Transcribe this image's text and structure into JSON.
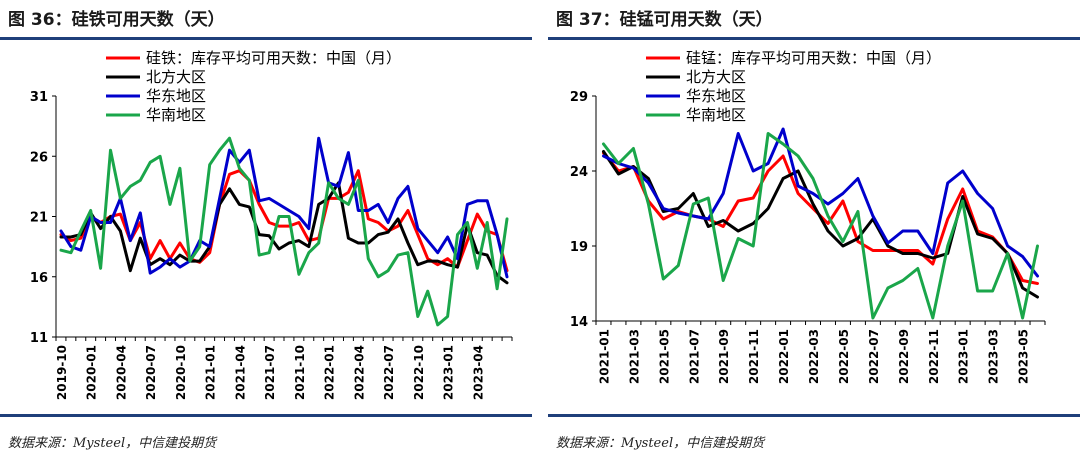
{
  "panels": [
    {
      "title": "图 36：硅铁可用天数（天）",
      "source": "数据来源：Mysteel，中信建投期货",
      "chart_data": {
        "type": "line",
        "ylim": [
          11,
          31
        ],
        "yticks": [
          11,
          16,
          21,
          26,
          31
        ],
        "x_labels": [
          "2019-10",
          "2020-01",
          "2020-04",
          "2020-07",
          "2020-10",
          "2021-01",
          "2021-04",
          "2021-07",
          "2021-10",
          "2022-01",
          "2022-04",
          "2022-07",
          "2022-10",
          "2023-01",
          "2023-04"
        ],
        "label_every": 3,
        "n_points": 46,
        "legend_position": "top-left",
        "grid": false,
        "series": [
          {
            "name": "硅铁：库存平均可用天数：中国（月）",
            "color": "#ff0000",
            "values": [
              19.5,
              19.0,
              19.2,
              21.0,
              20.5,
              21.0,
              21.2,
              19.0,
              20.5,
              17.5,
              19.0,
              17.5,
              18.8,
              17.5,
              17.2,
              18.0,
              22.0,
              24.5,
              24.8,
              24.0,
              22.0,
              20.5,
              20.2,
              20.2,
              20.5,
              19.0,
              19.2,
              22.5,
              22.5,
              23.0,
              24.8,
              20.8,
              20.5,
              19.8,
              20.2,
              21.5,
              19.5,
              17.5,
              17.0,
              17.5,
              16.8,
              19.0,
              21.2,
              19.8,
              19.5,
              16.5
            ]
          },
          {
            "name": "北方大区",
            "color": "#000000",
            "values": [
              19.3,
              19.3,
              19.5,
              21.3,
              20.0,
              21.0,
              19.8,
              16.5,
              19.2,
              17.0,
              17.5,
              17.0,
              17.8,
              17.3,
              17.3,
              18.5,
              22.0,
              23.3,
              22.0,
              21.8,
              19.5,
              19.4,
              18.3,
              18.8,
              19.0,
              18.5,
              22.0,
              22.5,
              23.8,
              19.2,
              18.8,
              18.8,
              19.5,
              19.7,
              20.8,
              18.8,
              17.0,
              17.3,
              17.3,
              17.0,
              16.8,
              20.3,
              18.0,
              17.8,
              16.1,
              15.5
            ]
          },
          {
            "name": "华东地区",
            "color": "#0000cc",
            "values": [
              19.8,
              18.5,
              18.2,
              21.0,
              20.5,
              20.5,
              22.5,
              19.0,
              21.3,
              16.3,
              16.8,
              17.5,
              16.8,
              17.3,
              19.0,
              18.5,
              22.5,
              26.5,
              25.5,
              26.5,
              22.3,
              22.5,
              22.0,
              21.5,
              21.0,
              20.0,
              27.5,
              23.8,
              23.5,
              26.3,
              21.5,
              21.5,
              22.0,
              20.5,
              22.5,
              23.5,
              20.0,
              19.0,
              18.0,
              19.3,
              17.5,
              22.0,
              22.3,
              22.3,
              19.5,
              16.0
            ]
          },
          {
            "name": "华南地区",
            "color": "#1aa64a",
            "values": [
              18.2,
              18.0,
              19.8,
              21.5,
              16.7,
              26.5,
              22.5,
              23.5,
              24.0,
              25.5,
              26.0,
              22.0,
              25.0,
              17.3,
              18.5,
              25.3,
              26.5,
              27.5,
              25.0,
              24.0,
              17.8,
              18.0,
              21.0,
              21.0,
              16.2,
              18.0,
              18.8,
              23.8,
              22.5,
              22.0,
              24.0,
              17.5,
              16.0,
              16.5,
              17.8,
              18.0,
              12.7,
              14.8,
              12.0,
              12.7,
              19.5,
              20.5,
              16.7,
              20.5,
              15.0,
              20.8
            ]
          }
        ]
      }
    },
    {
      "title": "图 37：硅锰可用天数（天）",
      "source": "数据来源：Mysteel，中信建投期货",
      "chart_data": {
        "type": "line",
        "ylim": [
          14,
          29
        ],
        "yticks": [
          14,
          19,
          24,
          29
        ],
        "x_labels": [
          "2021-01",
          "2021-03",
          "2021-05",
          "2021-07",
          "2021-09",
          "2021-11",
          "2022-01",
          "2022-03",
          "2022-05",
          "2022-07",
          "2022-09",
          "2022-11",
          "2023-01",
          "2023-03",
          "2023-05"
        ],
        "label_every": 2,
        "n_points": 30,
        "legend_position": "top-left",
        "grid": false,
        "series": [
          {
            "name": "硅锰：库存平均可用天数：中国（月）",
            "color": "#ff0000",
            "values": [
              25.2,
              24.0,
              24.3,
              22.0,
              20.8,
              21.3,
              21.0,
              20.8,
              20.3,
              22.0,
              22.2,
              24.0,
              25.0,
              22.5,
              21.5,
              20.5,
              22.0,
              19.3,
              18.7,
              18.7,
              18.7,
              18.7,
              17.8,
              20.8,
              22.8,
              20.0,
              19.6,
              18.5,
              16.7,
              16.5
            ]
          },
          {
            "name": "北方大区",
            "color": "#000000",
            "values": [
              25.3,
              23.8,
              24.3,
              23.5,
              21.3,
              21.5,
              22.5,
              20.3,
              20.7,
              20.0,
              20.5,
              21.5,
              23.5,
              24.0,
              21.8,
              20.0,
              19.0,
              19.5,
              20.8,
              19.0,
              18.5,
              18.5,
              18.2,
              18.5,
              22.3,
              19.8,
              19.5,
              18.5,
              16.2,
              15.6
            ]
          },
          {
            "name": "华东地区",
            "color": "#0000cc",
            "values": [
              25.0,
              24.5,
              24.2,
              23.2,
              21.5,
              21.2,
              21.0,
              20.8,
              22.5,
              26.5,
              24.0,
              24.5,
              26.8,
              23.0,
              22.5,
              21.8,
              22.5,
              23.5,
              21.0,
              19.2,
              20.0,
              20.0,
              18.5,
              23.2,
              24.0,
              22.5,
              21.5,
              19.0,
              18.3,
              17.0
            ]
          },
          {
            "name": "华南地区",
            "color": "#1aa64a",
            "values": [
              25.8,
              24.5,
              25.5,
              21.8,
              16.8,
              17.7,
              21.8,
              22.2,
              16.7,
              19.5,
              19.0,
              26.5,
              25.8,
              25.0,
              23.5,
              21.0,
              19.3,
              21.3,
              14.2,
              16.2,
              16.7,
              17.5,
              14.2,
              19.0,
              22.0,
              16.0,
              16.0,
              18.5,
              14.2,
              19.0
            ]
          }
        ]
      }
    }
  ]
}
